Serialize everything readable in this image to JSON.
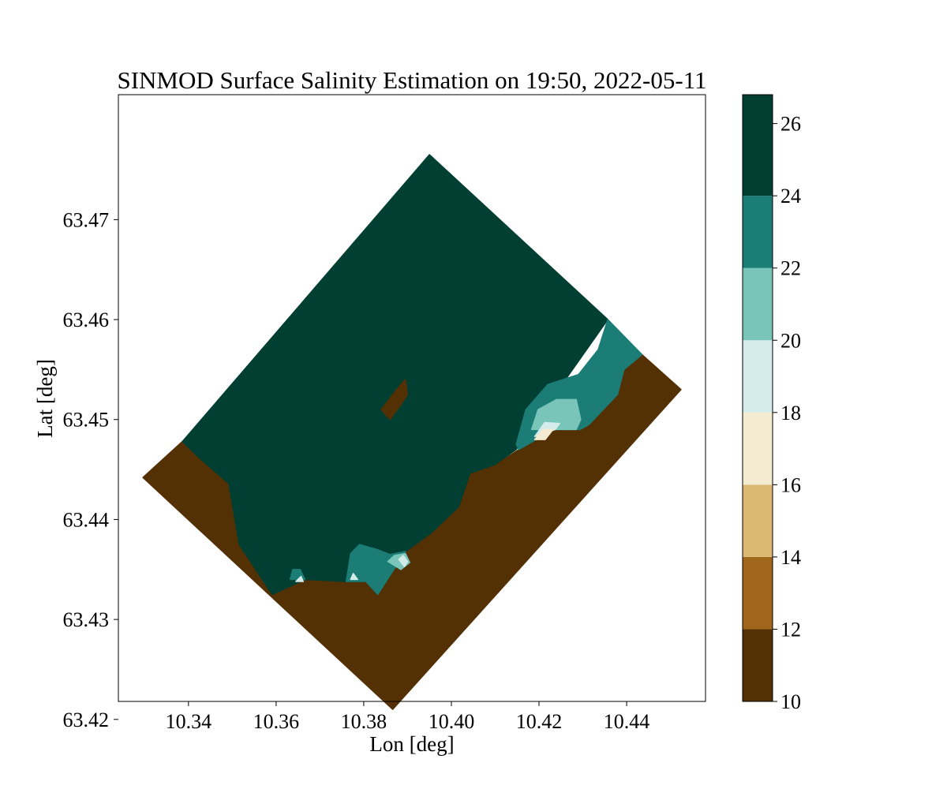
{
  "chart_data": {
    "type": "heatmap",
    "title": "SINMOD Surface Salinity Estimation on 19:50, 2022-05-11",
    "xlabel": "Lon [deg]",
    "ylabel": "Lat [deg]",
    "xlim": [
      10.324,
      10.458
    ],
    "ylim": [
      63.4218,
      63.4825
    ],
    "xticks": [
      10.34,
      10.36,
      10.38,
      10.4,
      10.42,
      10.44
    ],
    "xtick_labels": [
      "10.34",
      "10.36",
      "10.38",
      "10.40",
      "10.42",
      "10.44"
    ],
    "yticks": [
      63.42,
      63.43,
      63.44,
      63.45,
      63.46,
      63.47
    ],
    "ytick_labels": [
      "63.42",
      "63.43",
      "63.44",
      "63.45",
      "63.46",
      "63.47"
    ],
    "grid": false,
    "domain_corners": [
      [
        10.3296,
        63.4442
      ],
      [
        10.395,
        63.4765
      ],
      [
        10.4524,
        63.453
      ],
      [
        10.3866,
        63.421
      ]
    ],
    "colorbar": {
      "range": [
        10,
        26.8
      ],
      "levels": [
        10,
        12,
        14,
        16,
        18,
        20,
        22,
        24,
        26.8
      ],
      "tick_values": [
        10,
        12,
        14,
        16,
        18,
        20,
        22,
        24,
        26
      ],
      "tick_labels": [
        "10",
        "12",
        "14",
        "16",
        "18",
        "20",
        "22",
        "24",
        "26"
      ],
      "colors": [
        "#543005",
        "#A0661B",
        "#DBB873",
        "#F5EBD0",
        "#D3ECE9",
        "#7AC5BA",
        "#1B7D76",
        "#003F32"
      ]
    },
    "regions": [
      {
        "band": "12",
        "value": "10-12",
        "color": "#543005",
        "points": [
          [
            10.3296,
            63.4442
          ],
          [
            10.3386,
            63.4478
          ],
          [
            10.3429,
            63.446
          ],
          [
            10.3492,
            63.4436
          ],
          [
            10.3516,
            63.4375
          ],
          [
            10.3591,
            63.4325
          ],
          [
            10.3666,
            63.434
          ],
          [
            10.376,
            63.4338
          ],
          [
            10.3805,
            63.4338
          ],
          [
            10.3832,
            63.4325
          ],
          [
            10.3895,
            63.4368
          ],
          [
            10.3955,
            63.4387
          ],
          [
            10.4017,
            63.4413
          ],
          [
            10.4042,
            63.4446
          ],
          [
            10.4106,
            63.4456
          ],
          [
            10.4154,
            63.447
          ],
          [
            10.4233,
            63.449
          ],
          [
            10.4294,
            63.449
          ],
          [
            10.4314,
            63.4495
          ],
          [
            10.4379,
            63.4525
          ],
          [
            10.4394,
            63.455
          ],
          [
            10.4435,
            63.4565
          ],
          [
            10.4524,
            63.453
          ],
          [
            10.3866,
            63.421
          ]
        ]
      },
      {
        "band": "26",
        "value": "24-26.8",
        "color": "#003F32",
        "points": [
          [
            10.3386,
            63.4478
          ],
          [
            10.395,
            63.4765
          ],
          [
            10.4357,
            63.46
          ],
          [
            10.4148,
            63.447
          ],
          [
            10.41,
            63.4455
          ],
          [
            10.4042,
            63.4446
          ],
          [
            10.4017,
            63.4413
          ],
          [
            10.3955,
            63.4387
          ],
          [
            10.3895,
            63.4368
          ],
          [
            10.3832,
            63.4325
          ],
          [
            10.3805,
            63.4338
          ],
          [
            10.376,
            63.4338
          ],
          [
            10.3666,
            63.434
          ],
          [
            10.3591,
            63.4325
          ],
          [
            10.3516,
            63.4375
          ],
          [
            10.3492,
            63.4436
          ],
          [
            10.3429,
            63.446
          ]
        ]
      },
      {
        "band": "24",
        "value": "22-24",
        "color": "#1B7D76",
        "points": [
          [
            10.4357,
            63.46
          ],
          [
            10.4435,
            63.4565
          ],
          [
            10.4394,
            63.455
          ],
          [
            10.4379,
            63.4525
          ],
          [
            10.4314,
            63.4495
          ],
          [
            10.4294,
            63.449
          ],
          [
            10.4233,
            63.449
          ],
          [
            10.4154,
            63.447
          ],
          [
            10.4148,
            63.4475
          ],
          [
            10.417,
            63.451
          ],
          [
            10.422,
            63.4535
          ],
          [
            10.429,
            63.4545
          ],
          [
            10.4335,
            63.457
          ]
        ]
      },
      {
        "band": "22",
        "value": "20-22",
        "color": "#7AC5BA",
        "points": [
          [
            10.4183,
            63.449
          ],
          [
            10.4198,
            63.451
          ],
          [
            10.424,
            63.452
          ],
          [
            10.4285,
            63.452
          ],
          [
            10.4295,
            63.45
          ],
          [
            10.4285,
            63.449
          ],
          [
            10.4233,
            63.449
          ]
        ]
      },
      {
        "band": "20",
        "value": "18-20",
        "color": "#D3ECE9",
        "points": [
          [
            10.419,
            63.4483
          ],
          [
            10.4213,
            63.4497
          ],
          [
            10.4247,
            63.4496
          ],
          [
            10.4237,
            63.449
          ]
        ]
      },
      {
        "band": "18",
        "value": "16-18",
        "color": "#F5EBD0",
        "points": [
          [
            10.419,
            63.448
          ],
          [
            10.421,
            63.449
          ],
          [
            10.4232,
            63.449
          ],
          [
            10.4214,
            63.448
          ]
        ]
      },
      {
        "band": "24",
        "value": "22-24",
        "color": "#1B7D76",
        "points": [
          [
            10.376,
            63.4338
          ],
          [
            10.377,
            63.4366
          ],
          [
            10.379,
            63.4375
          ],
          [
            10.383,
            63.437
          ],
          [
            10.386,
            63.4365
          ],
          [
            10.3895,
            63.4368
          ],
          [
            10.3832,
            63.4325
          ],
          [
            10.3805,
            63.4338
          ]
        ]
      },
      {
        "band": "22",
        "value": "20-22",
        "color": "#7AC5BA",
        "points": [
          [
            10.3855,
            63.4358
          ],
          [
            10.387,
            63.4364
          ],
          [
            10.3895,
            63.4366
          ],
          [
            10.3905,
            63.4357
          ],
          [
            10.3885,
            63.435
          ]
        ]
      },
      {
        "band": "20",
        "value": "18-20",
        "color": "#D3ECE9",
        "points": [
          [
            10.388,
            63.436
          ],
          [
            10.389,
            63.4364
          ],
          [
            10.39,
            63.4358
          ],
          [
            10.3893,
            63.4353
          ]
        ]
      },
      {
        "band": "24",
        "value": "22-24",
        "color": "#1B7D76",
        "points": [
          [
            10.3632,
            63.434
          ],
          [
            10.3638,
            63.435
          ],
          [
            10.3655,
            63.435
          ],
          [
            10.3666,
            63.434
          ]
        ]
      },
      {
        "band": "20",
        "value": "18-20",
        "color": "#D3ECE9",
        "points": [
          [
            10.3645,
            63.4338
          ],
          [
            10.3657,
            63.4343
          ],
          [
            10.3662,
            63.4338
          ]
        ]
      },
      {
        "band": "20",
        "value": "18-20",
        "color": "#D3ECE9",
        "points": [
          [
            10.377,
            63.434
          ],
          [
            10.3776,
            63.4346
          ],
          [
            10.3786,
            63.434
          ]
        ]
      },
      {
        "band": "12",
        "value": "10-12",
        "color": "#543005",
        "points": [
          [
            10.384,
            63.451
          ],
          [
            10.3875,
            63.453
          ],
          [
            10.3895,
            63.454
          ],
          [
            10.39,
            63.4525
          ],
          [
            10.3885,
            63.4515
          ],
          [
            10.386,
            63.45
          ]
        ]
      }
    ]
  }
}
